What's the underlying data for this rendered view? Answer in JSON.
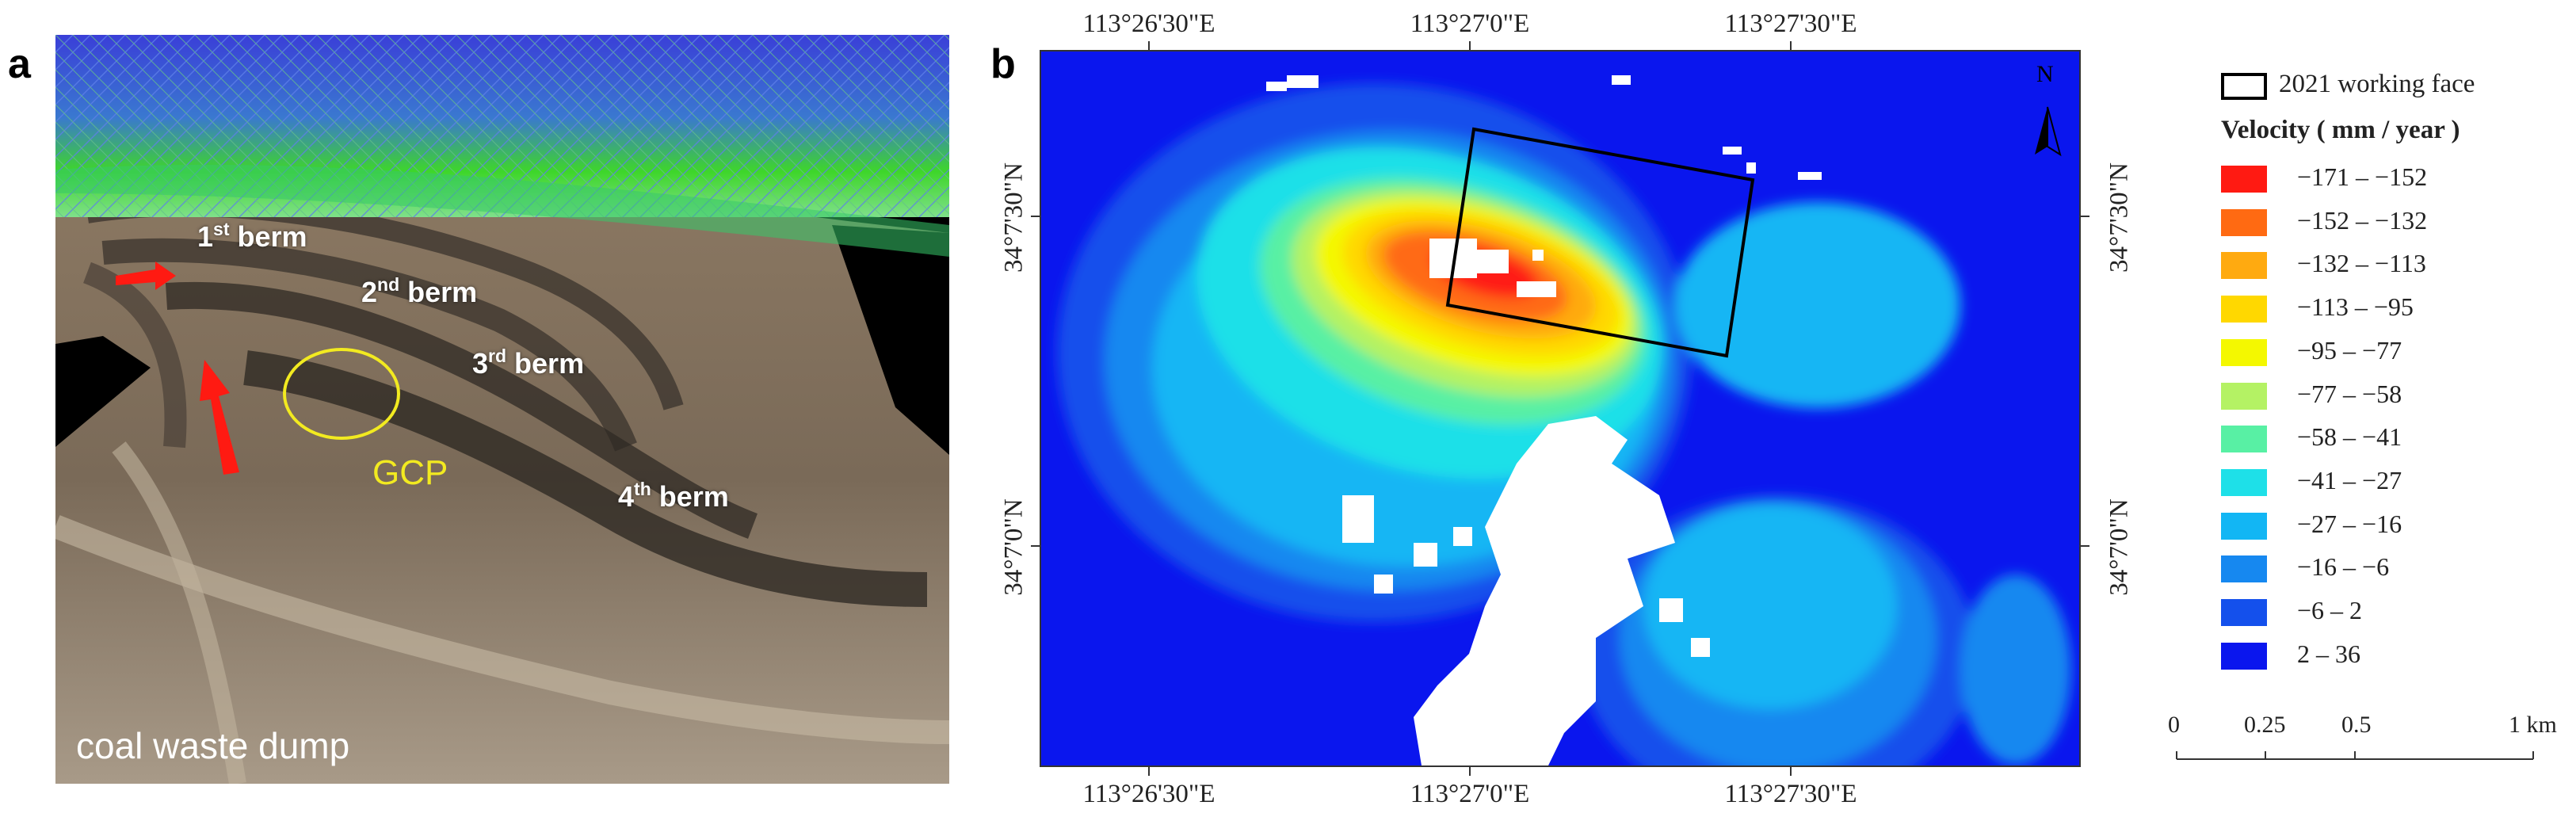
{
  "panels": {
    "a": {
      "letter": "a"
    },
    "b": {
      "letter": "b"
    }
  },
  "photo": {
    "berms": [
      {
        "ordinal": "1",
        "suffix": "st",
        "word": "berm"
      },
      {
        "ordinal": "2",
        "suffix": "nd",
        "word": "berm"
      },
      {
        "ordinal": "3",
        "suffix": "rd",
        "word": "berm"
      },
      {
        "ordinal": "4",
        "suffix": "th",
        "word": "berm"
      }
    ],
    "gcp_label": "GCP",
    "dump_label": "coal waste dump",
    "colors": {
      "arrow": "#ff1a12",
      "gcp_circle": "#f2ea20",
      "point_cloud_top": "#3a3fd8",
      "point_cloud_bottom": "#3ed62a"
    }
  },
  "map": {
    "lon_labels": [
      "113°26'30\"E",
      "113°27'0\"E",
      "113°27'30\"E"
    ],
    "lat_labels": [
      "34°7'30\"N",
      "34°7'0\"N"
    ],
    "north_label": "N",
    "legend": {
      "working_face_label": "2021 working face",
      "velocity_title": "Velocity ( mm / year )",
      "classes": [
        {
          "label": "−171 – −152",
          "color": "#ff1a12"
        },
        {
          "label": "−152 – −132",
          "color": "#ff6a12"
        },
        {
          "label": "−132 – −113",
          "color": "#ffaa10"
        },
        {
          "label": "−113 – −95",
          "color": "#ffd800"
        },
        {
          "label": "−95 – −77",
          "color": "#f4f800"
        },
        {
          "label": "−77 – −58",
          "color": "#b4f264"
        },
        {
          "label": "−58 – −41",
          "color": "#58f0a4"
        },
        {
          "label": "−41 – −27",
          "color": "#1ee0e8"
        },
        {
          "label": "−27 – −16",
          "color": "#12b6f4"
        },
        {
          "label": "−16 – −6",
          "color": "#1688f0"
        },
        {
          "label": "−6 – 2",
          "color": "#1450ec"
        },
        {
          "label": "2 – 36",
          "color": "#0a16ee"
        }
      ]
    },
    "scale_bar": {
      "labels": [
        "0",
        "0.25",
        "0.5",
        "1 km"
      ]
    }
  }
}
